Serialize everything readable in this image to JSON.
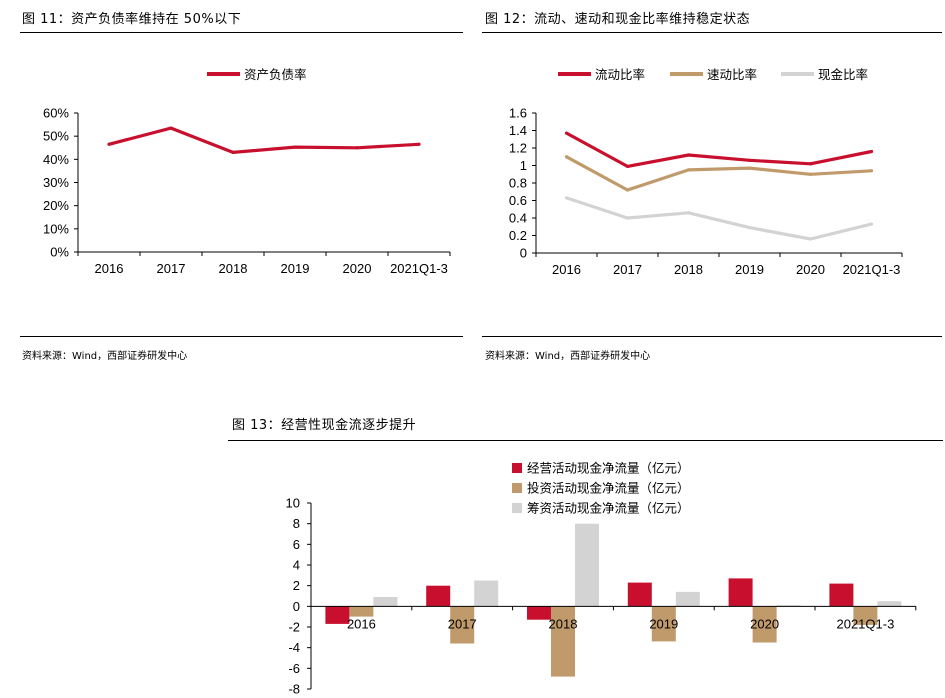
{
  "figures": {
    "fig11": {
      "caption": "图 11：资产负债率维持在 50%以下",
      "source": "资料来源：Wind，西部证券研发中心"
    },
    "fig12": {
      "caption": "图 12：流动、速动和现金比率维持稳定状态",
      "source": "资料来源：Wind，西部证券研发中心"
    },
    "fig13": {
      "caption": "图 13：经营性现金流逐步提升"
    }
  },
  "chart_data": [
    {
      "type": "line",
      "categories": [
        "2016",
        "2017",
        "2018",
        "2019",
        "2020",
        "2021Q1-3"
      ],
      "series": [
        {
          "name": "资产负债率",
          "values": [
            46.5,
            53.5,
            43,
            45.3,
            45,
            46.5
          ],
          "color": "#c8102e"
        }
      ],
      "ylim": [
        0,
        60
      ],
      "yticks": [
        "0%",
        "10%",
        "20%",
        "30%",
        "40%",
        "50%",
        "60%"
      ],
      "y_unit": "%",
      "legend": "top-center",
      "grid": false
    },
    {
      "type": "line",
      "categories": [
        "2016",
        "2017",
        "2018",
        "2019",
        "2020",
        "2021Q1-3"
      ],
      "series": [
        {
          "name": "流动比率",
          "values": [
            1.37,
            0.99,
            1.12,
            1.06,
            1.02,
            1.16
          ],
          "color": "#c8102e"
        },
        {
          "name": "速动比率",
          "values": [
            1.1,
            0.72,
            0.95,
            0.97,
            0.9,
            0.94
          ],
          "color": "#c19a6b"
        },
        {
          "name": "现金比率",
          "values": [
            0.63,
            0.4,
            0.46,
            0.29,
            0.16,
            0.33
          ],
          "color": "#d3d3d3"
        }
      ],
      "ylim": [
        0,
        1.6
      ],
      "yticks": [
        "0",
        "0.2",
        "0.4",
        "0.6",
        "0.8",
        "1",
        "1.2",
        "1.4",
        "1.6"
      ],
      "legend": "top",
      "grid": false
    },
    {
      "type": "bar",
      "categories": [
        "2016",
        "2017",
        "2018",
        "2019",
        "2020",
        "2021Q1-3"
      ],
      "series": [
        {
          "name": "经营活动现金净流量（亿元）",
          "values": [
            -1.7,
            2.0,
            -1.3,
            2.3,
            2.7,
            2.2
          ],
          "color": "#c8102e"
        },
        {
          "name": "投资活动现金净流量（亿元）",
          "values": [
            -1.0,
            -3.6,
            -6.8,
            -3.4,
            -3.5,
            -1.8
          ],
          "color": "#c19a6b"
        },
        {
          "name": "筹资活动现金净流量（亿元）",
          "values": [
            0.9,
            2.5,
            8.0,
            1.4,
            0.1,
            0.5
          ],
          "color": "#d3d3d3"
        }
      ],
      "ylim": [
        -8,
        10
      ],
      "yticks": [
        "-8",
        "-6",
        "-4",
        "-2",
        "0",
        "2",
        "4",
        "6",
        "8",
        "10"
      ],
      "legend": "top",
      "grid": false
    }
  ]
}
